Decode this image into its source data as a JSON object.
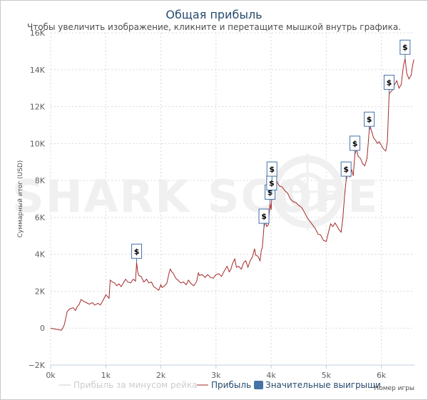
{
  "chart_data": {
    "type": "line",
    "title": "Общая прибыль",
    "subtitle": "Чтобы увеличить изображение, кликните и перетащите мышкой внутрь графика.",
    "ylabel": "Суммарный итог (USD)",
    "xlabel": "Номер игры",
    "watermark": "SHARK SCOPE",
    "xlim": [
      0,
      6600
    ],
    "ylim": [
      -2000,
      16000
    ],
    "x_ticks": [
      "0k",
      "1k",
      "2k",
      "3k",
      "4k",
      "5k",
      "6k"
    ],
    "y_ticks": [
      "−2K",
      "0",
      "2K",
      "4K",
      "6K",
      "8K",
      "10K",
      "12K",
      "14K",
      "16K"
    ],
    "grid": true,
    "legend_position": "bottom",
    "series": [
      {
        "name": "Прибыль за минусом рейка",
        "color": "#cccccc",
        "visible": false,
        "points": []
      },
      {
        "name": "Прибыль",
        "color": "#a52a2a",
        "visible": true,
        "points": [
          [
            0,
            0
          ],
          [
            80,
            -50
          ],
          [
            140,
            -80
          ],
          [
            190,
            -120
          ],
          [
            220,
            0
          ],
          [
            250,
            200
          ],
          [
            300,
            900
          ],
          [
            350,
            1050
          ],
          [
            410,
            1100
          ],
          [
            450,
            950
          ],
          [
            480,
            1150
          ],
          [
            520,
            1300
          ],
          [
            550,
            1550
          ],
          [
            600,
            1450
          ],
          [
            650,
            1380
          ],
          [
            700,
            1300
          ],
          [
            760,
            1380
          ],
          [
            800,
            1250
          ],
          [
            860,
            1350
          ],
          [
            900,
            1250
          ],
          [
            950,
            1500
          ],
          [
            1000,
            1800
          ],
          [
            1020,
            1750
          ],
          [
            1060,
            1620
          ],
          [
            1080,
            2600
          ],
          [
            1120,
            2500
          ],
          [
            1160,
            2450
          ],
          [
            1200,
            2300
          ],
          [
            1240,
            2400
          ],
          [
            1280,
            2250
          ],
          [
            1320,
            2450
          ],
          [
            1360,
            2650
          ],
          [
            1400,
            2500
          ],
          [
            1450,
            2450
          ],
          [
            1500,
            2650
          ],
          [
            1540,
            2550
          ],
          [
            1560,
            3550
          ],
          [
            1580,
            3050
          ],
          [
            1600,
            2850
          ],
          [
            1640,
            2800
          ],
          [
            1690,
            2500
          ],
          [
            1740,
            2650
          ],
          [
            1780,
            2450
          ],
          [
            1830,
            2500
          ],
          [
            1870,
            2250
          ],
          [
            1920,
            2150
          ],
          [
            1960,
            2050
          ],
          [
            2000,
            2350
          ],
          [
            2020,
            2200
          ],
          [
            2070,
            2300
          ],
          [
            2110,
            2450
          ],
          [
            2150,
            3000
          ],
          [
            2170,
            3200
          ],
          [
            2200,
            3050
          ],
          [
            2230,
            2950
          ],
          [
            2270,
            2700
          ],
          [
            2310,
            2600
          ],
          [
            2360,
            2450
          ],
          [
            2410,
            2500
          ],
          [
            2460,
            2350
          ],
          [
            2500,
            2600
          ],
          [
            2550,
            2400
          ],
          [
            2600,
            2300
          ],
          [
            2650,
            2550
          ],
          [
            2680,
            3000
          ],
          [
            2700,
            2850
          ],
          [
            2750,
            2900
          ],
          [
            2800,
            2750
          ],
          [
            2850,
            2900
          ],
          [
            2900,
            2750
          ],
          [
            2950,
            2700
          ],
          [
            3000,
            2900
          ],
          [
            3050,
            2950
          ],
          [
            3100,
            2800
          ],
          [
            3150,
            3100
          ],
          [
            3200,
            3350
          ],
          [
            3240,
            3050
          ],
          [
            3270,
            3200
          ],
          [
            3300,
            3500
          ],
          [
            3340,
            3750
          ],
          [
            3370,
            3300
          ],
          [
            3410,
            3350
          ],
          [
            3460,
            3200
          ],
          [
            3500,
            3550
          ],
          [
            3540,
            3650
          ],
          [
            3580,
            3300
          ],
          [
            3620,
            3650
          ],
          [
            3660,
            3850
          ],
          [
            3700,
            4300
          ],
          [
            3720,
            3950
          ],
          [
            3760,
            3900
          ],
          [
            3800,
            3650
          ],
          [
            3820,
            4200
          ],
          [
            3840,
            4350
          ],
          [
            3870,
            5450
          ],
          [
            3900,
            5800
          ],
          [
            3920,
            5500
          ],
          [
            3950,
            5600
          ],
          [
            3980,
            6750
          ],
          [
            4000,
            6400
          ],
          [
            4020,
            7500
          ],
          [
            4060,
            7800
          ],
          [
            4080,
            8200
          ],
          [
            4110,
            7900
          ],
          [
            4150,
            7700
          ],
          [
            4200,
            7650
          ],
          [
            4250,
            7450
          ],
          [
            4300,
            7300
          ],
          [
            4350,
            7000
          ],
          [
            4400,
            6850
          ],
          [
            4450,
            6800
          ],
          [
            4500,
            6650
          ],
          [
            4550,
            6550
          ],
          [
            4600,
            6300
          ],
          [
            4650,
            6000
          ],
          [
            4700,
            5800
          ],
          [
            4750,
            5600
          ],
          [
            4800,
            5400
          ],
          [
            4850,
            5100
          ],
          [
            4900,
            5050
          ],
          [
            4950,
            4750
          ],
          [
            5000,
            4700
          ],
          [
            5040,
            5200
          ],
          [
            5080,
            5650
          ],
          [
            5120,
            5500
          ],
          [
            5160,
            5700
          ],
          [
            5200,
            5500
          ],
          [
            5240,
            5300
          ],
          [
            5270,
            5200
          ],
          [
            5300,
            5900
          ],
          [
            5330,
            7100
          ],
          [
            5360,
            8000
          ],
          [
            5400,
            8500
          ],
          [
            5430,
            8200
          ],
          [
            5460,
            8600
          ],
          [
            5490,
            8250
          ],
          [
            5520,
            9400
          ],
          [
            5550,
            9700
          ],
          [
            5580,
            9300
          ],
          [
            5620,
            9200
          ],
          [
            5660,
            8900
          ],
          [
            5700,
            8800
          ],
          [
            5740,
            9200
          ],
          [
            5780,
            10700
          ],
          [
            5800,
            10900
          ],
          [
            5830,
            10600
          ],
          [
            5860,
            10300
          ],
          [
            5890,
            10200
          ],
          [
            5930,
            10000
          ],
          [
            5960,
            10100
          ],
          [
            6000,
            9900
          ],
          [
            6040,
            9700
          ],
          [
            6080,
            9600
          ],
          [
            6110,
            10100
          ],
          [
            6140,
            12700
          ],
          [
            6170,
            12800
          ],
          [
            6200,
            12900
          ],
          [
            6240,
            13200
          ],
          [
            6280,
            13400
          ],
          [
            6320,
            13000
          ],
          [
            6360,
            13200
          ],
          [
            6400,
            14200
          ],
          [
            6430,
            14600
          ],
          [
            6460,
            13800
          ],
          [
            6500,
            13500
          ],
          [
            6540,
            13700
          ],
          [
            6570,
            14300
          ],
          [
            6590,
            14550
          ]
        ]
      },
      {
        "name": "Значительные выигрыши",
        "color": "#4572a7",
        "marker_label": "$",
        "points": [
          [
            1560,
            3550
          ],
          [
            3870,
            5450
          ],
          [
            3980,
            6750
          ],
          [
            4010,
            7250
          ],
          [
            4015,
            8000
          ],
          [
            5360,
            8000
          ],
          [
            5520,
            9400
          ],
          [
            5780,
            10700
          ],
          [
            6140,
            12700
          ],
          [
            6430,
            14600
          ]
        ]
      }
    ]
  }
}
